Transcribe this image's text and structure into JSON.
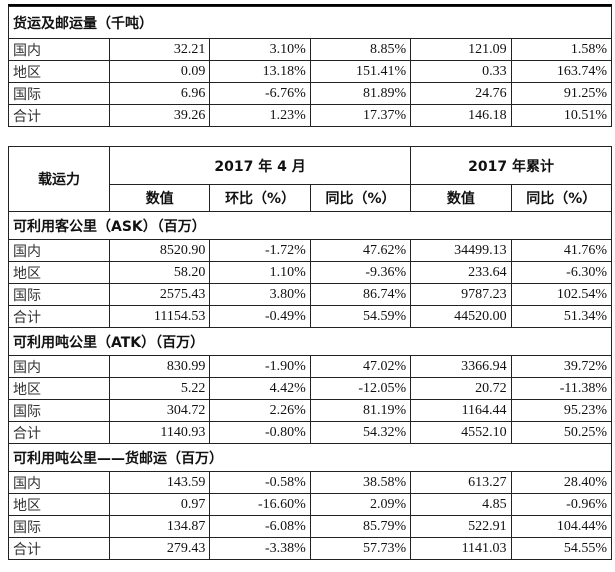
{
  "cargo_table": {
    "title": "货运及邮运量（千吨）",
    "rows": [
      [
        "国内",
        "32.21",
        "3.10%",
        "8.85%",
        "121.09",
        "1.58%"
      ],
      [
        "地区",
        "0.09",
        "13.18%",
        "151.41%",
        "0.33",
        "163.74%"
      ],
      [
        "国际",
        "6.96",
        "-6.76%",
        "81.89%",
        "24.76",
        "91.25%"
      ],
      [
        "合计",
        "39.26",
        "1.23%",
        "17.37%",
        "146.18",
        "10.51%"
      ]
    ]
  },
  "capacity_table": {
    "row_header": "载运力",
    "group_month": "2017 年 4 月",
    "group_ytd": "2017 年累计",
    "columns": [
      "数值",
      "环比（%）",
      "同比（%）",
      "数值",
      "同比（%）"
    ],
    "sections": [
      {
        "title": "可利用客公里（ASK）（百万）",
        "rows": [
          [
            "国内",
            "8520.90",
            "-1.72%",
            "47.62%",
            "34499.13",
            "41.76%"
          ],
          [
            "地区",
            "58.20",
            "1.10%",
            "-9.36%",
            "233.64",
            "-6.30%"
          ],
          [
            "国际",
            "2575.43",
            "3.80%",
            "86.74%",
            "9787.23",
            "102.54%"
          ],
          [
            "合计",
            "11154.53",
            "-0.49%",
            "54.59%",
            "44520.00",
            "51.34%"
          ]
        ]
      },
      {
        "title": "可利用吨公里（ATK）（百万）",
        "rows": [
          [
            "国内",
            "830.99",
            "-1.90%",
            "47.02%",
            "3366.94",
            "39.72%"
          ],
          [
            "地区",
            "5.22",
            "4.42%",
            "-12.05%",
            "20.72",
            "-11.38%"
          ],
          [
            "国际",
            "304.72",
            "2.26%",
            "81.19%",
            "1164.44",
            "95.23%"
          ],
          [
            "合计",
            "1140.93",
            "-0.80%",
            "54.32%",
            "4552.10",
            "50.25%"
          ]
        ]
      },
      {
        "title": "可利用吨公里——货邮运（百万）",
        "rows": [
          [
            "国内",
            "143.59",
            "-0.58%",
            "38.58%",
            "613.27",
            "28.40%"
          ],
          [
            "地区",
            "0.97",
            "-16.60%",
            "2.09%",
            "4.85",
            "-0.96%"
          ],
          [
            "国际",
            "134.87",
            "-6.08%",
            "85.79%",
            "522.91",
            "104.44%"
          ],
          [
            "合计",
            "279.43",
            "-3.38%",
            "57.73%",
            "1141.03",
            "54.55%"
          ]
        ]
      }
    ]
  }
}
